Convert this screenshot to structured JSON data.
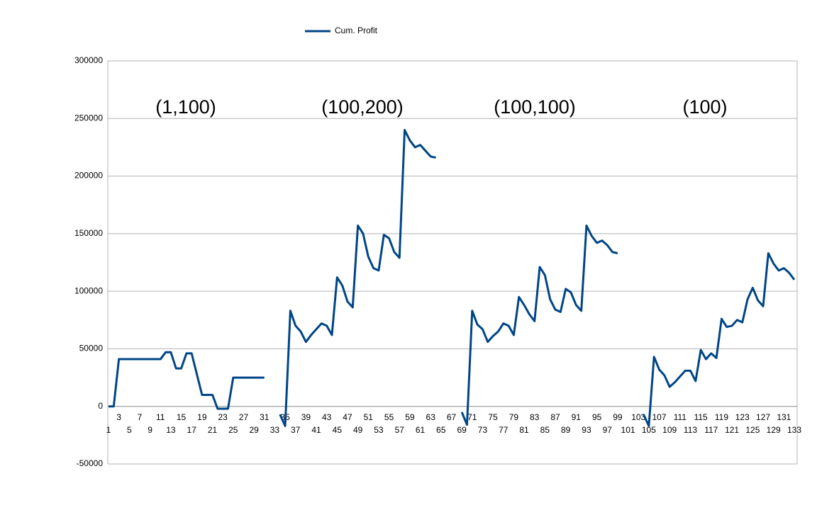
{
  "chart_data": {
    "type": "line",
    "legend": "top",
    "grid": true,
    "annotations": [
      "(1,100)",
      "(100,200)",
      "(100,100)",
      "(100)"
    ],
    "categories": [
      "1",
      null,
      "3",
      null,
      "5",
      null,
      "7",
      null,
      "9",
      null,
      "11",
      null,
      "13",
      null,
      "15",
      null,
      "17",
      null,
      "19",
      null,
      "21",
      null,
      "23",
      null,
      "25",
      null,
      "27",
      null,
      "29",
      null,
      "31",
      null,
      "33",
      null,
      "35",
      null,
      "37",
      null,
      "39",
      null,
      "41",
      null,
      "43",
      null,
      "45",
      null,
      "47",
      null,
      "49",
      null,
      "51",
      null,
      "53",
      null,
      "55",
      null,
      "57",
      null,
      "59",
      null,
      "61",
      null,
      "63",
      null,
      "65",
      null,
      "67",
      null,
      "69",
      null,
      "71",
      null,
      "73",
      null,
      "75",
      null,
      "77",
      null,
      "79",
      null,
      "81",
      null,
      "83",
      null,
      "85",
      null,
      "87",
      null,
      "89",
      null,
      "91",
      null,
      "93",
      null,
      "95",
      null,
      "97",
      null,
      "99",
      null,
      "101",
      null,
      "103",
      null,
      "105",
      null,
      "107",
      null,
      "109",
      null,
      "111",
      null,
      "113",
      null,
      "115",
      null,
      "117",
      null,
      "119",
      null,
      "121",
      null,
      "123",
      null,
      "125",
      null,
      "127",
      null,
      "129",
      null,
      "131",
      null,
      "133"
    ],
    "series": [
      {
        "name": "Cum. Profit",
        "color": "#004586",
        "values": [
          0,
          0,
          41000,
          41000,
          41000,
          41000,
          41000,
          41000,
          41000,
          41000,
          41000,
          47000,
          47000,
          33000,
          33000,
          46000,
          46000,
          28000,
          10000,
          10000,
          10000,
          -2000,
          -2000,
          -2000,
          25000,
          25000,
          25000,
          25000,
          25000,
          25000,
          25000,
          null,
          null,
          -7000,
          -17000,
          83000,
          70000,
          65000,
          56000,
          62000,
          67000,
          72000,
          70000,
          62000,
          112000,
          105000,
          91000,
          86000,
          157000,
          150000,
          130000,
          120000,
          118000,
          149000,
          146000,
          134000,
          129000,
          240000,
          231000,
          225000,
          227000,
          222000,
          217000,
          216000,
          null,
          null,
          null,
          null,
          -5000,
          -16000,
          83000,
          71000,
          67000,
          56000,
          61000,
          65000,
          72000,
          70000,
          62000,
          95000,
          88000,
          80000,
          74000,
          121000,
          114000,
          93000,
          84000,
          82000,
          102000,
          99000,
          88000,
          83000,
          157000,
          148000,
          142000,
          144000,
          140000,
          134000,
          133000,
          null,
          null,
          null,
          null,
          -7000,
          -17000,
          43000,
          32000,
          27000,
          17000,
          21000,
          26000,
          31000,
          31000,
          22000,
          49000,
          41000,
          46000,
          42000,
          76000,
          69000,
          70000,
          75000,
          73000,
          93000,
          103000,
          92000,
          87000,
          133000,
          124000,
          118000,
          120000,
          116000,
          110000
        ]
      }
    ],
    "ylim": [
      -50000,
      300000
    ],
    "yticks": [
      -50000,
      0,
      50000,
      100000,
      150000,
      200000,
      250000,
      300000
    ]
  }
}
